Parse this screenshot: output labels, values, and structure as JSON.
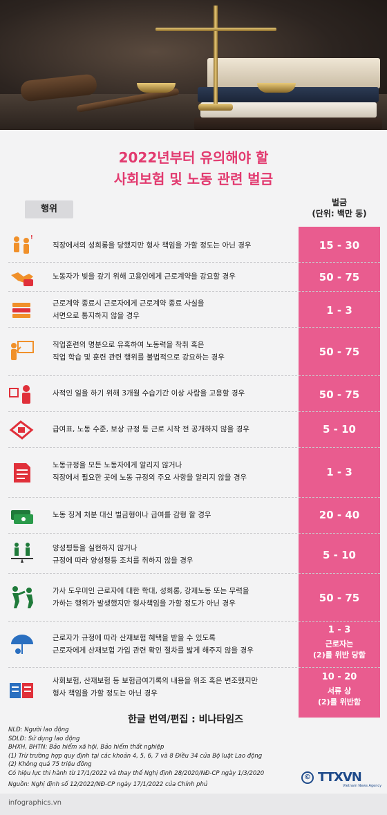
{
  "title": {
    "line1": "2022년부터 유의해야 할",
    "line2": "사회보험 및 노동 관련 벌금"
  },
  "headers": {
    "behavior": "행위",
    "fine": "벌금",
    "unit": "(단위: 백만 동)"
  },
  "rows": [
    {
      "icon": "harassment-icon",
      "text": "직장에서의 성희롱을 당했지만 형사 책임을 가할 정도는 아닌 경우",
      "fine": "15 - 30"
    },
    {
      "icon": "handshake-money-icon",
      "text": "노동자가 빚을 갚기 위해 고용인에게 근로계약을 강요할 경우",
      "fine": "50 - 75"
    },
    {
      "icon": "documents-stack-icon",
      "line1": "근로계약 종료시 근로자에게 근로계약 종료 사실을",
      "line2": "서면으로 통지하지 않을 경우",
      "fine": "1 - 3"
    },
    {
      "icon": "training-board-icon",
      "line1": "직업훈련의 명분으로 유혹하여 노동력을 착취 혹은",
      "line2": "직업 학습 및 훈련 관련 행위를 불법적으로 강요하는 경우",
      "fine": "50 - 75"
    },
    {
      "icon": "calendar-worker-icon",
      "text": "사적인 일을 하기 위해 3개월 수습기간 이상 사람을 고용할 경우",
      "fine": "50 - 75"
    },
    {
      "icon": "payroll-icon",
      "text": "급여표, 노동 수준, 보상 규정 등 근로 시작 전 공개하지 않을 경우",
      "fine": "5 - 10"
    },
    {
      "icon": "regulation-document-icon",
      "line1": "노동규정을 모든 노동자에게 알리지 않거나",
      "line2": "직장에서 필요한 곳에 노동 규정의 주요 사항을 알리지 않을 경우",
      "fine": "1 - 3"
    },
    {
      "icon": "money-stack-icon",
      "text": "노동 징계 처분 대신 벌금형이나 급여를 감형 할 경우",
      "fine": "20 - 40"
    },
    {
      "icon": "gender-equality-icon",
      "line1": "양성평등을 실현하지 않거나",
      "line2": "규정에 따라 양성평등 조치를 취하지 않을 경우",
      "fine": "5 - 10"
    },
    {
      "icon": "violence-icon",
      "line1": "가사 도우미인 근로자에 대한 학대, 성희롱, 강제노동 또는 무력을",
      "line2": "가하는 행위가 발생했지만 형사책임을 가할 정도가 아닌 경우",
      "fine": "50 - 75"
    },
    {
      "icon": "insurance-umbrella-icon",
      "line1": "근로자가 규정에 따라 산재보험 혜택을 받을 수 있도록",
      "line2": "근로자에게 산재보험 가입 관련 확인 절차를 밟게 해주지 않을 경우",
      "fine": "1 - 3",
      "sub1": "근로자는",
      "sub2": "(2)를 위반 당함"
    },
    {
      "icon": "falsified-records-icon",
      "line1": "사회보험, 산재보험 등 보험급여기록의 내용을 위조 혹은 변조했지만",
      "line2": "형사 책임을 가할 정도는 아닌 경우",
      "fine": "10 - 20",
      "sub1": "서류 상",
      "sub2": "(2)를 위반함"
    }
  ],
  "translation_credit": "한글 번역/편집 : 비나타임즈",
  "notes": [
    "NLĐ: Người lao động",
    "SDLĐ: Sử dụng lao động",
    "BHXH, BHTN: Bảo hiểm xã hội, Bảo hiểm thất nghiệp",
    "(1) Trừ trường hợp quy định tại các khoản 4, 5, 6, 7 và 8 Điều 34 của Bộ luật Lao động",
    "(2) Không quá 75 triệu đồng",
    "Có hiệu lực thi hành từ 17/1/2022 và thay thế Nghị định 28/2020/NĐ-CP ngày 1/3/2020"
  ],
  "source": "Nguồn: Nghị định số 12/2022/NĐ-CP ngày 17/1/2022 của Chính phủ",
  "logo": {
    "copyright": "©",
    "name": "TTXVN",
    "agency": "Vietnam News Agency"
  },
  "footer": "infographics.vn",
  "colors": {
    "accent": "#e23a6f",
    "fine_column": "#e95c8f",
    "icon_orange": "#f0902a",
    "icon_red": "#e0303a",
    "icon_green": "#1f7a3a",
    "icon_blue": "#2a6fc0"
  }
}
